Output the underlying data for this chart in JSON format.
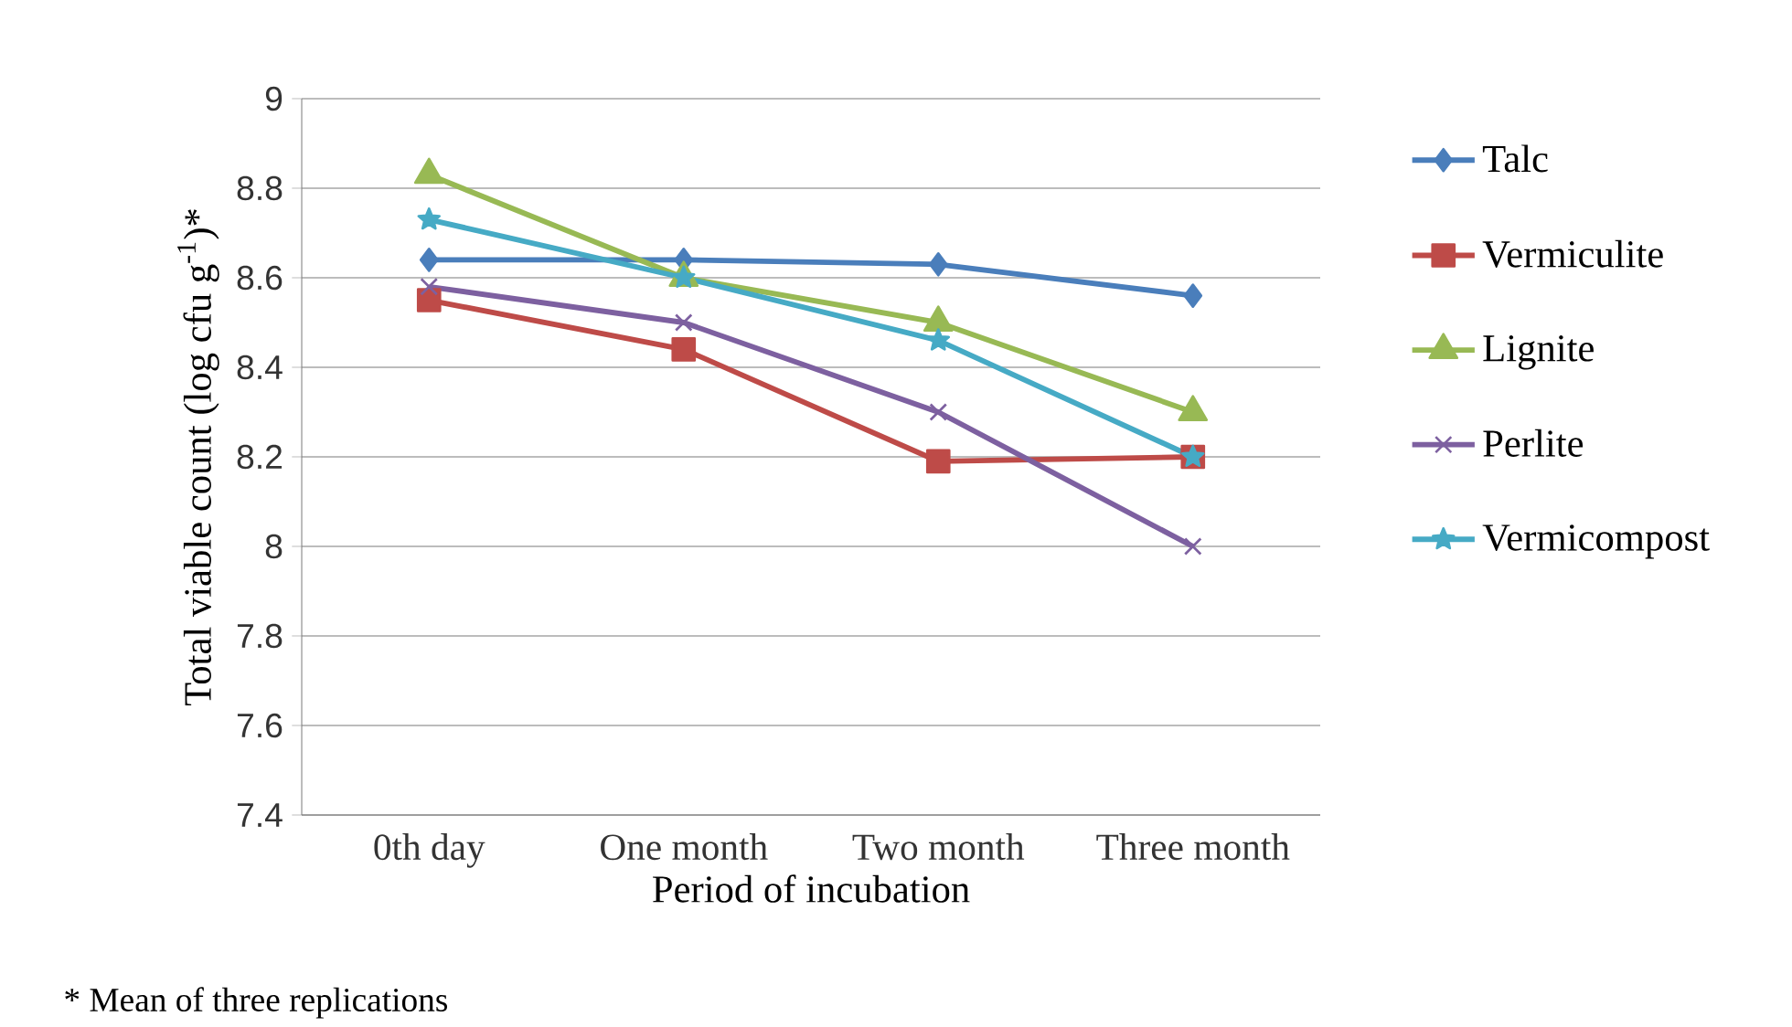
{
  "chart_data": {
    "type": "line",
    "xlabel": "Period of incubation",
    "ylabel": "Total viable count (log cfu g$^{-1}$)*",
    "categories": [
      "0th day",
      "One month",
      "Two month",
      "Three month"
    ],
    "series": [
      {
        "name": "Talc",
        "color": "#4a7ebb",
        "marker": "diamond",
        "values": [
          8.64,
          8.64,
          8.63,
          8.56
        ]
      },
      {
        "name": "Vermiculite",
        "color": "#be4b48",
        "marker": "square",
        "values": [
          8.55,
          8.44,
          8.19,
          8.2
        ]
      },
      {
        "name": "Lignite",
        "color": "#98b954",
        "marker": "triangle",
        "values": [
          8.83,
          8.6,
          8.5,
          8.3
        ]
      },
      {
        "name": "Perlite",
        "color": "#7d60a0",
        "marker": "cross",
        "values": [
          8.58,
          8.5,
          8.3,
          8.0
        ]
      },
      {
        "name": "Vermicompost",
        "color": "#46aac5",
        "marker": "star",
        "values": [
          8.73,
          8.6,
          8.46,
          8.2
        ]
      }
    ],
    "ylim": [
      7.4,
      9
    ],
    "yticks": [
      7.4,
      7.6,
      7.8,
      8,
      8.2,
      8.4,
      8.6,
      8.8,
      9
    ],
    "grid": "y",
    "legend": "right",
    "annotations": [
      "* Mean of three replications"
    ]
  }
}
